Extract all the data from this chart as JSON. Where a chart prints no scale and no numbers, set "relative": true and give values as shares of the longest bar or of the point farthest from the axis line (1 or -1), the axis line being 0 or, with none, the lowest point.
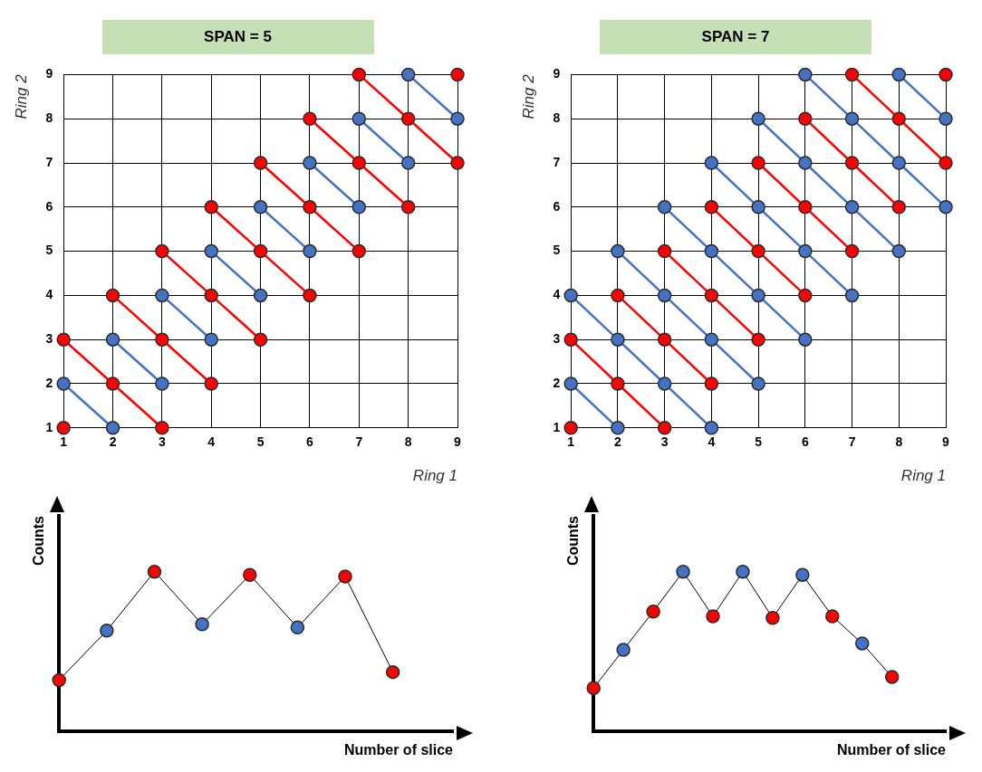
{
  "chart_data": [
    {
      "type": "line",
      "title": "SPAN = 5",
      "xlabel": "Ring 1",
      "ylabel": "Ring 2",
      "xlim": [
        1,
        9
      ],
      "ylim": [
        1,
        9
      ],
      "xticks": [
        1,
        2,
        3,
        4,
        5,
        6,
        7,
        8,
        9
      ],
      "yticks": [
        1,
        2,
        3,
        4,
        5,
        6,
        7,
        8,
        9
      ],
      "grid": true,
      "legend": false,
      "marker": "circle",
      "series": [
        {
          "color": "#ff0000",
          "x": [
            1
          ],
          "values": [
            1
          ]
        },
        {
          "color": "#4472c4",
          "x": [
            1,
            2
          ],
          "values": [
            2,
            1
          ]
        },
        {
          "color": "#ff0000",
          "x": [
            1,
            2,
            3
          ],
          "values": [
            3,
            2,
            1
          ]
        },
        {
          "color": "#4472c4",
          "x": [
            2,
            3
          ],
          "values": [
            3,
            2
          ]
        },
        {
          "color": "#ff0000",
          "x": [
            2,
            3,
            4
          ],
          "values": [
            4,
            3,
            2
          ]
        },
        {
          "color": "#4472c4",
          "x": [
            3,
            4
          ],
          "values": [
            4,
            3
          ]
        },
        {
          "color": "#ff0000",
          "x": [
            3,
            4,
            5
          ],
          "values": [
            5,
            4,
            3
          ]
        },
        {
          "color": "#4472c4",
          "x": [
            4,
            5
          ],
          "values": [
            5,
            4
          ]
        },
        {
          "color": "#ff0000",
          "x": [
            4,
            5,
            6
          ],
          "values": [
            6,
            5,
            4
          ]
        },
        {
          "color": "#4472c4",
          "x": [
            5,
            6
          ],
          "values": [
            6,
            5
          ]
        },
        {
          "color": "#ff0000",
          "x": [
            5,
            6,
            7
          ],
          "values": [
            7,
            6,
            5
          ]
        },
        {
          "color": "#4472c4",
          "x": [
            6,
            7
          ],
          "values": [
            7,
            6
          ]
        },
        {
          "color": "#ff0000",
          "x": [
            6,
            7,
            8
          ],
          "values": [
            8,
            7,
            6
          ]
        },
        {
          "color": "#4472c4",
          "x": [
            7,
            8
          ],
          "values": [
            8,
            7
          ]
        },
        {
          "color": "#ff0000",
          "x": [
            7,
            8,
            9
          ],
          "values": [
            9,
            8,
            7
          ]
        },
        {
          "color": "#4472c4",
          "x": [
            8,
            9
          ],
          "values": [
            9,
            8
          ]
        },
        {
          "color": "#ff0000",
          "x": [
            9
          ],
          "values": [
            9
          ]
        }
      ]
    },
    {
      "type": "line",
      "title": "SPAN = 7",
      "xlabel": "Ring 1",
      "ylabel": "Ring 2",
      "xlim": [
        1,
        9
      ],
      "ylim": [
        1,
        9
      ],
      "xticks": [
        1,
        2,
        3,
        4,
        5,
        6,
        7,
        8,
        9
      ],
      "yticks": [
        1,
        2,
        3,
        4,
        5,
        6,
        7,
        8,
        9
      ],
      "grid": true,
      "legend": false,
      "marker": "circle",
      "series": [
        {
          "color": "#ff0000",
          "x": [
            1
          ],
          "values": [
            1
          ]
        },
        {
          "color": "#4472c4",
          "x": [
            1,
            2
          ],
          "values": [
            2,
            1
          ]
        },
        {
          "color": "#ff0000",
          "x": [
            1,
            2,
            3
          ],
          "values": [
            3,
            2,
            1
          ]
        },
        {
          "color": "#4472c4",
          "x": [
            1,
            2,
            3,
            4
          ],
          "values": [
            4,
            3,
            2,
            1
          ]
        },
        {
          "color": "#ff0000",
          "x": [
            2,
            3,
            4
          ],
          "values": [
            4,
            3,
            2
          ]
        },
        {
          "color": "#4472c4",
          "x": [
            2,
            3,
            4,
            5
          ],
          "values": [
            5,
            4,
            3,
            2
          ]
        },
        {
          "color": "#ff0000",
          "x": [
            3,
            4,
            5
          ],
          "values": [
            5,
            4,
            3
          ]
        },
        {
          "color": "#4472c4",
          "x": [
            3,
            4,
            5,
            6
          ],
          "values": [
            6,
            5,
            4,
            3
          ]
        },
        {
          "color": "#ff0000",
          "x": [
            4,
            5,
            6
          ],
          "values": [
            6,
            5,
            4
          ]
        },
        {
          "color": "#4472c4",
          "x": [
            4,
            5,
            6,
            7
          ],
          "values": [
            7,
            6,
            5,
            4
          ]
        },
        {
          "color": "#ff0000",
          "x": [
            5,
            6,
            7
          ],
          "values": [
            7,
            6,
            5
          ]
        },
        {
          "color": "#4472c4",
          "x": [
            5,
            6,
            7,
            8
          ],
          "values": [
            8,
            7,
            6,
            5
          ]
        },
        {
          "color": "#ff0000",
          "x": [
            6,
            7,
            8
          ],
          "values": [
            8,
            7,
            6
          ]
        },
        {
          "color": "#4472c4",
          "x": [
            6,
            7,
            8,
            9
          ],
          "values": [
            9,
            8,
            7,
            6
          ]
        },
        {
          "color": "#ff0000",
          "x": [
            7,
            8,
            9
          ],
          "values": [
            9,
            8,
            7
          ]
        },
        {
          "color": "#4472c4",
          "x": [
            8,
            9
          ],
          "values": [
            9,
            8
          ]
        },
        {
          "color": "#ff0000",
          "x": [
            9
          ],
          "values": [
            9
          ]
        }
      ]
    },
    {
      "type": "line",
      "xlabel": "Number of slice",
      "ylabel": "Counts",
      "relative": true,
      "tick_labels": false,
      "legend": false,
      "marker": "circle",
      "categories": [
        null,
        null,
        null,
        null,
        null,
        null,
        null,
        null
      ],
      "series": [
        {
          "color": "#000000",
          "colors": [
            "#ff0000",
            "#4472c4",
            "#ff0000",
            "#4472c4",
            "#ff0000",
            "#4472c4",
            "#ff0000",
            "#ff0000"
          ],
          "values": [
            0.32,
            0.63,
            1,
            0.67,
            0.98,
            0.65,
            0.97,
            0.37
          ]
        }
      ]
    },
    {
      "type": "line",
      "xlabel": "Number of slice",
      "ylabel": "Counts",
      "relative": true,
      "tick_labels": false,
      "legend": false,
      "marker": "circle",
      "categories": [
        null,
        null,
        null,
        null,
        null,
        null,
        null,
        null,
        null,
        null,
        null
      ],
      "series": [
        {
          "color": "#000000",
          "colors": [
            "#ff0000",
            "#4472c4",
            "#ff0000",
            "#4472c4",
            "#ff0000",
            "#4472c4",
            "#ff0000",
            "#4472c4",
            "#ff0000",
            "#4472c4",
            "#ff0000"
          ],
          "values": [
            0.27,
            0.51,
            0.75,
            1,
            0.72,
            1,
            0.71,
            0.98,
            0.72,
            0.55,
            0.34
          ]
        }
      ]
    }
  ]
}
